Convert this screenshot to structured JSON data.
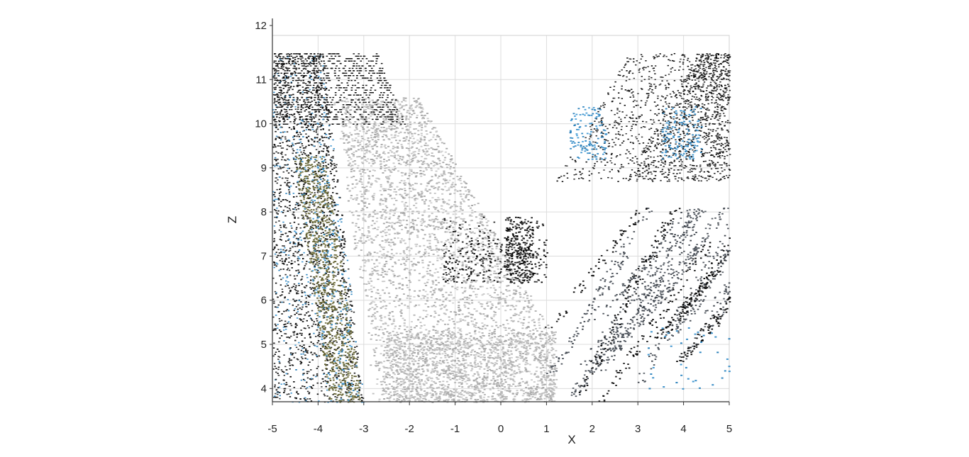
{
  "chart_data": {
    "type": "scatter",
    "title": "",
    "xlabel": "X",
    "ylabel": "Z",
    "xlim": [
      -5,
      5
    ],
    "ylim": [
      3.7,
      12
    ],
    "grid": true,
    "xticks": [
      "-5",
      "-4",
      "-3",
      "-2",
      "-1",
      "0",
      "1",
      "2",
      "3",
      "4",
      "5"
    ],
    "yticks": [
      "4",
      "5",
      "6",
      "7",
      "8",
      "9",
      "10",
      "11",
      "12"
    ],
    "colors": {
      "light_gray": "#b8b8b8",
      "dark_gray": "#2e2e2e",
      "black": "#0c0c0c",
      "olive": "#6b6a3a",
      "blue": "#3a8fc8",
      "slate": "#4a5058"
    },
    "point_clusters": [
      {
        "name": "",
        "color": "light_gray",
        "x_range": [
          -3.3,
          1.2
        ],
        "z_range": [
          3.7,
          10.6
        ],
        "shape": "funnel-left"
      },
      {
        "name": "",
        "color": "light_gray",
        "x_range": [
          -2.5,
          1.2
        ],
        "z_range": [
          3.7,
          5.3
        ],
        "shape": "floor"
      },
      {
        "name": "",
        "color": "dark_gray",
        "x_range": [
          -5,
          -3.1
        ],
        "z_range": [
          3.7,
          11.6
        ],
        "shape": "left-wall"
      },
      {
        "name": "",
        "color": "olive",
        "x_range": [
          -4.4,
          -3.2
        ],
        "z_range": [
          3.7,
          9.5
        ],
        "shape": "left-strip"
      },
      {
        "name": "",
        "color": "black",
        "x_range": [
          -5,
          -2
        ],
        "z_range": [
          10.0,
          11.6
        ],
        "shape": "top-left-rows"
      },
      {
        "name": "",
        "color": "slate",
        "x_range": [
          1.0,
          5
        ],
        "z_range": [
          3.7,
          8.0
        ],
        "shape": "right-wall"
      },
      {
        "name": "",
        "color": "dark_gray",
        "x_range": [
          1.2,
          5
        ],
        "z_range": [
          8.8,
          11.6
        ],
        "shape": "top-right"
      },
      {
        "name": "",
        "color": "blue",
        "x_range": [
          1.5,
          4.5
        ],
        "z_range": [
          9.0,
          10.4
        ],
        "shape": "top-right-blue"
      },
      {
        "name": "",
        "color": "dark_gray",
        "x_range": [
          -1.4,
          1.0
        ],
        "z_range": [
          6.3,
          8.0
        ],
        "shape": "center-object"
      }
    ]
  }
}
